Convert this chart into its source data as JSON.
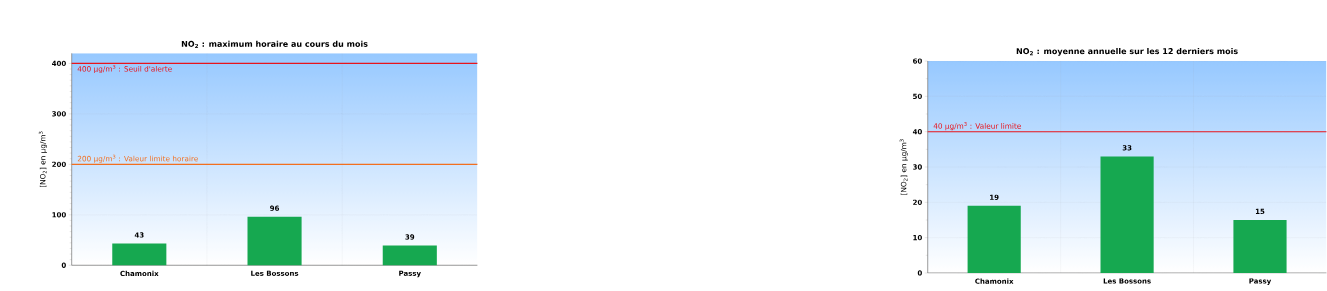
{
  "chart_data": [
    {
      "type": "bar",
      "title": "NO$_{2}$ : maximum horaire au cours du mois",
      "ylabel": "[NO$_{2}$] en µg/m$^{3}$",
      "categories": [
        "Chamonix",
        "Les Bossons",
        "Passy"
      ],
      "values": [
        43,
        96,
        39
      ],
      "color": "#16a850",
      "ylim": [
        0,
        420
      ],
      "yticks": [
        0,
        100,
        200,
        300,
        400
      ],
      "grid": true,
      "data_labels": true,
      "ref_lines": [
        {
          "axis": "y",
          "value": 400,
          "label": "400 µg/m$^{3}$ : Seuil d'alerte",
          "color": "#e8141c"
        },
        {
          "axis": "y",
          "value": 200,
          "label": "200 µg/m$^{3}$ : Valeur limite horaire",
          "color": "#f26f1f"
        }
      ]
    },
    {
      "type": "bar",
      "title": "NO$_{2}$ : moyenne annuelle sur les 12 derniers mois",
      "ylabel": "[NO$_{2}$] en µg/m$^{3}$",
      "categories": [
        "Chamonix",
        "Les Bossons",
        "Passy"
      ],
      "values": [
        19,
        33,
        15
      ],
      "color": "#16a850",
      "ylim": [
        0,
        60
      ],
      "yticks": [
        0,
        10,
        20,
        30,
        40,
        50,
        60
      ],
      "grid": true,
      "data_labels": true,
      "ref_lines": [
        {
          "axis": "y",
          "value": 40,
          "label": "40 µg/m$^{3}$ : Valeur limite",
          "color": "#e8141c"
        }
      ]
    }
  ]
}
